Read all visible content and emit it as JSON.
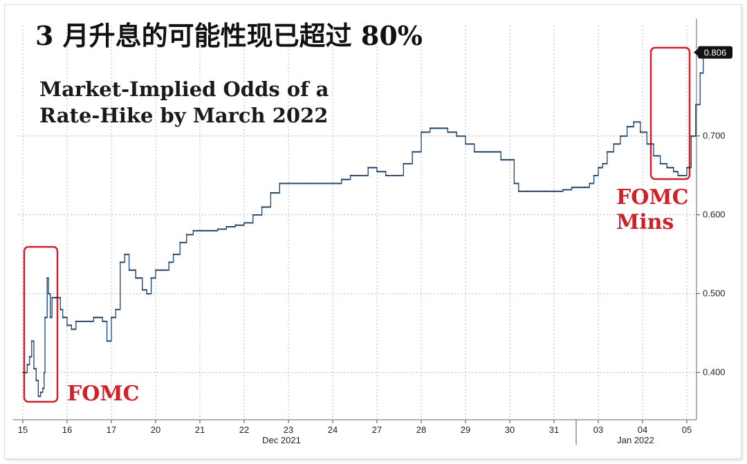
{
  "headline": "3 月升息的可能性现已超过 80%",
  "chart_data": {
    "type": "line",
    "title_lines": [
      "Market-Implied Odds of a",
      "Rate-Hike by March 2022"
    ],
    "x_labels": [
      "15",
      "16",
      "17",
      "20",
      "21",
      "22",
      "23",
      "24",
      "27",
      "28",
      "29",
      "30",
      "31",
      "03",
      "04",
      "05"
    ],
    "month_labels": [
      "Dec 2021",
      "Jan 2022"
    ],
    "y_ticks": [
      "0.400",
      "0.500",
      "0.600",
      "0.700"
    ],
    "ylim": [
      0.34,
      0.84
    ],
    "last_value_label": "0.806",
    "annotations": [
      "FOMC",
      "FOMC Mins"
    ],
    "grid": true,
    "axis_side": "right",
    "series": [
      {
        "color": "#1f66c2",
        "points": [
          [
            0.0,
            0.4
          ],
          [
            0.1,
            0.41
          ],
          [
            0.15,
            0.42
          ],
          [
            0.2,
            0.44
          ],
          [
            0.25,
            0.405
          ],
          [
            0.3,
            0.39
          ],
          [
            0.35,
            0.37
          ],
          [
            0.4,
            0.375
          ],
          [
            0.45,
            0.38
          ],
          [
            0.48,
            0.4
          ],
          [
            0.5,
            0.47
          ],
          [
            0.55,
            0.52
          ],
          [
            0.58,
            0.5
          ],
          [
            0.62,
            0.47
          ],
          [
            0.66,
            0.495
          ],
          [
            0.75,
            0.495
          ],
          [
            0.85,
            0.48
          ],
          [
            0.9,
            0.47
          ],
          [
            1.0,
            0.46
          ],
          [
            1.1,
            0.455
          ],
          [
            1.2,
            0.465
          ],
          [
            1.4,
            0.465
          ],
          [
            1.6,
            0.47
          ],
          [
            1.8,
            0.465
          ],
          [
            1.9,
            0.44
          ],
          [
            2.0,
            0.47
          ],
          [
            2.1,
            0.48
          ],
          [
            2.2,
            0.54
          ],
          [
            2.3,
            0.55
          ],
          [
            2.4,
            0.53
          ],
          [
            2.55,
            0.52
          ],
          [
            2.7,
            0.505
          ],
          [
            2.8,
            0.5
          ],
          [
            2.9,
            0.52
          ],
          [
            3.0,
            0.53
          ],
          [
            3.15,
            0.53
          ],
          [
            3.3,
            0.54
          ],
          [
            3.4,
            0.55
          ],
          [
            3.55,
            0.565
          ],
          [
            3.7,
            0.575
          ],
          [
            3.85,
            0.58
          ],
          [
            4.0,
            0.58
          ],
          [
            4.2,
            0.58
          ],
          [
            4.4,
            0.582
          ],
          [
            4.6,
            0.585
          ],
          [
            4.8,
            0.587
          ],
          [
            5.0,
            0.59
          ],
          [
            5.2,
            0.6
          ],
          [
            5.4,
            0.61
          ],
          [
            5.6,
            0.628
          ],
          [
            5.8,
            0.64
          ],
          [
            6.0,
            0.64
          ],
          [
            6.2,
            0.64
          ],
          [
            6.4,
            0.64
          ],
          [
            6.6,
            0.64
          ],
          [
            6.8,
            0.64
          ],
          [
            7.0,
            0.64
          ],
          [
            7.2,
            0.645
          ],
          [
            7.4,
            0.65
          ],
          [
            7.6,
            0.65
          ],
          [
            7.8,
            0.66
          ],
          [
            8.0,
            0.655
          ],
          [
            8.2,
            0.65
          ],
          [
            8.4,
            0.65
          ],
          [
            8.6,
            0.665
          ],
          [
            8.8,
            0.68
          ],
          [
            9.0,
            0.705
          ],
          [
            9.2,
            0.71
          ],
          [
            9.4,
            0.71
          ],
          [
            9.6,
            0.705
          ],
          [
            9.8,
            0.7
          ],
          [
            10.0,
            0.69
          ],
          [
            10.2,
            0.68
          ],
          [
            10.4,
            0.68
          ],
          [
            10.6,
            0.68
          ],
          [
            10.8,
            0.67
          ],
          [
            11.0,
            0.67
          ],
          [
            11.1,
            0.64
          ],
          [
            11.2,
            0.63
          ],
          [
            11.4,
            0.63
          ],
          [
            11.6,
            0.63
          ],
          [
            11.8,
            0.63
          ],
          [
            12.0,
            0.63
          ],
          [
            12.2,
            0.632
          ],
          [
            12.4,
            0.635
          ],
          [
            12.6,
            0.635
          ],
          [
            12.7,
            0.635
          ],
          [
            12.8,
            0.64
          ],
          [
            12.9,
            0.65
          ],
          [
            13.0,
            0.66
          ],
          [
            13.1,
            0.665
          ],
          [
            13.2,
            0.68
          ],
          [
            13.35,
            0.69
          ],
          [
            13.5,
            0.7
          ],
          [
            13.65,
            0.712
          ],
          [
            13.8,
            0.718
          ],
          [
            13.95,
            0.705
          ],
          [
            14.1,
            0.69
          ],
          [
            14.25,
            0.675
          ],
          [
            14.4,
            0.665
          ],
          [
            14.55,
            0.66
          ],
          [
            14.7,
            0.655
          ],
          [
            14.8,
            0.65
          ],
          [
            14.9,
            0.65
          ],
          [
            15.0,
            0.66
          ],
          [
            15.1,
            0.7
          ],
          [
            15.2,
            0.74
          ],
          [
            15.3,
            0.78
          ],
          [
            15.37,
            0.806
          ]
        ]
      }
    ]
  }
}
